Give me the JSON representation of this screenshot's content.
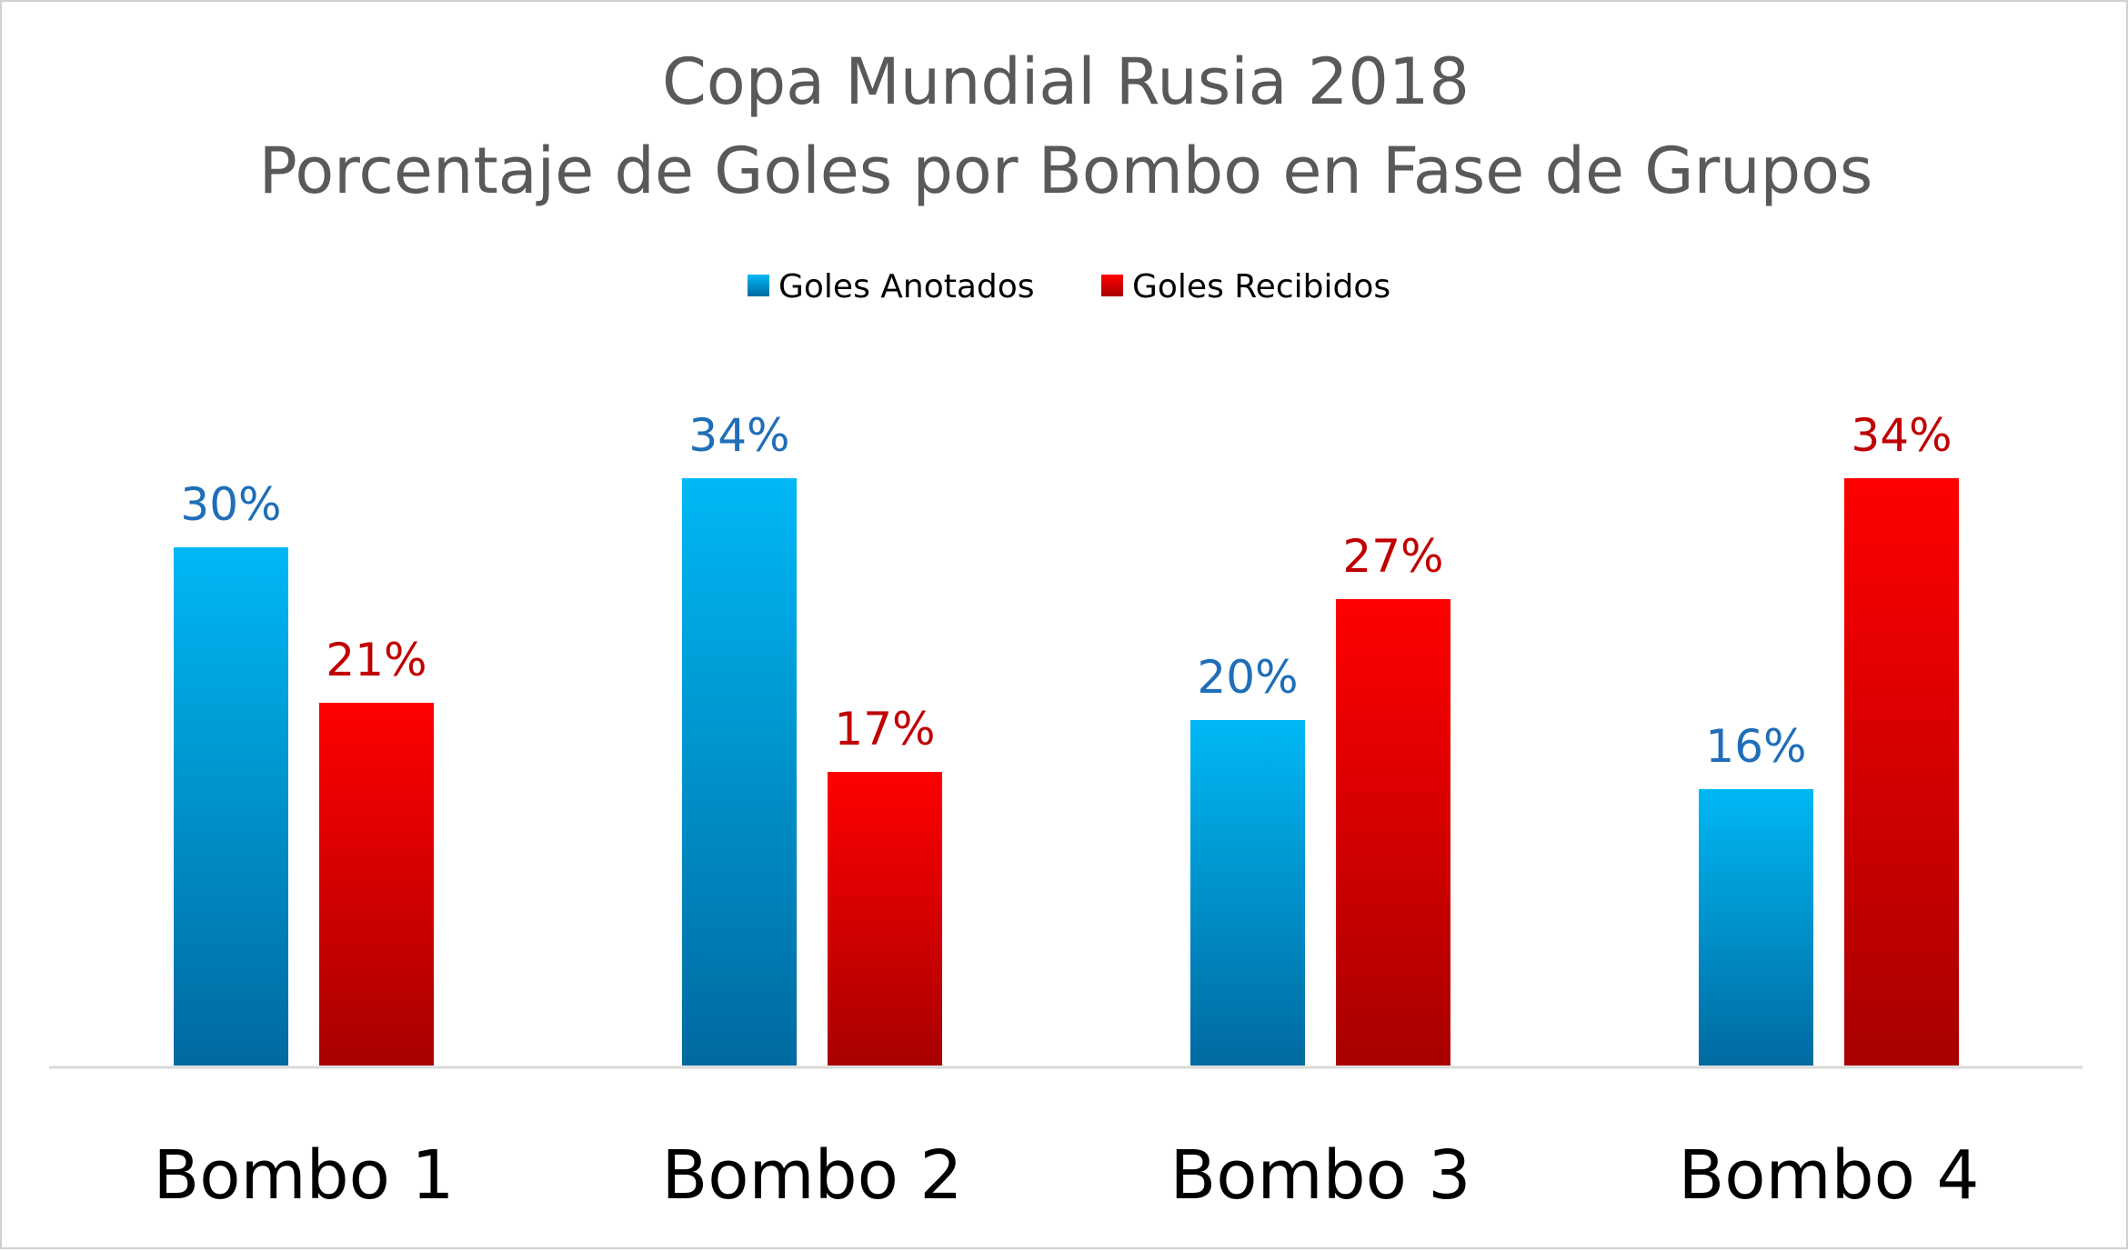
{
  "chart_data": {
    "type": "bar",
    "title": "Copa Mundial Rusia 2018",
    "subtitle": "Porcentaje de Goles por Bombo en Fase de Grupos",
    "categories": [
      "Bombo 1",
      "Bombo 2",
      "Bombo 3",
      "Bombo 4"
    ],
    "series": [
      {
        "name": "Goles Anotados",
        "values": [
          30,
          34,
          20,
          16
        ],
        "labels": [
          "30%",
          "34%",
          "20%",
          "16%"
        ],
        "color_top": "#00b8f5",
        "color_bottom": "#006aa0",
        "label_color": "#1f6eb8"
      },
      {
        "name": "Goles Recibidos",
        "values": [
          21,
          17,
          27,
          34
        ],
        "labels": [
          "21%",
          "17%",
          "27%",
          "34%"
        ],
        "color_top": "#ff0000",
        "color_bottom": "#a80000",
        "label_color": "#c00000"
      }
    ],
    "unit": "%",
    "ylim": [
      0,
      38
    ],
    "y_axis_visible": false,
    "grid": false,
    "legend_position": "top-center"
  }
}
